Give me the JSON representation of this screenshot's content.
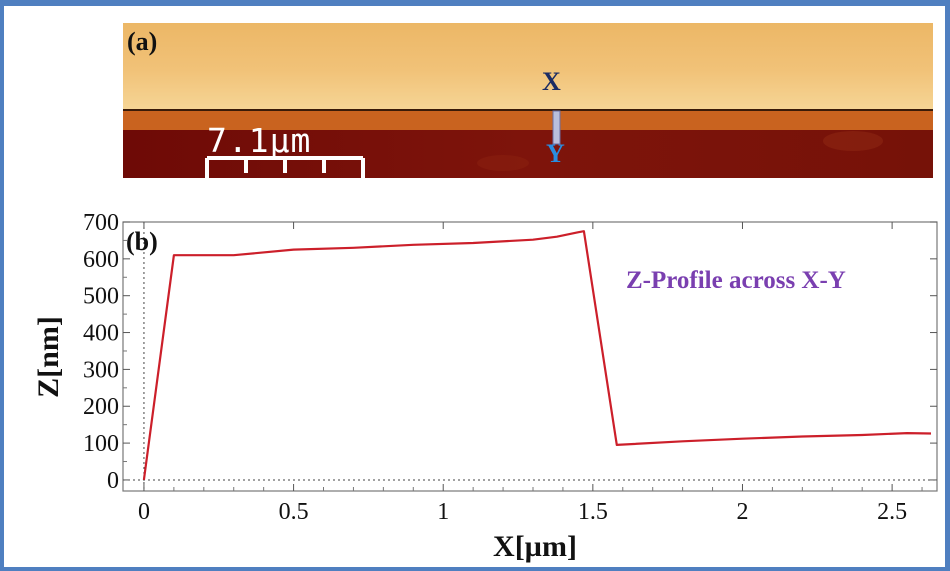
{
  "panel_a": {
    "label": "(a)",
    "scale_bar_text": "7.1µm",
    "marker_x": "X",
    "marker_y": "Y"
  },
  "colors": {
    "frame": "#4f7fc0",
    "line": "#cc1f2a",
    "annotation": "#7a3fb0",
    "marker_x": "#1c2c63",
    "marker_y": "#2a8de0"
  },
  "chart_data": {
    "type": "line",
    "panel_label": "(b)",
    "annotation": "Z-Profile across X-Y",
    "xlabel": "X[µm]",
    "ylabel": "Z[nm]",
    "xlim": [
      -0.07,
      2.65
    ],
    "ylim": [
      -30,
      700
    ],
    "xticks": [
      0,
      0.5,
      1,
      1.5,
      2,
      2.5
    ],
    "xtick_labels": [
      "0",
      "0.5",
      "1",
      "1.5",
      "2",
      "2.5"
    ],
    "yticks": [
      0,
      100,
      200,
      300,
      400,
      500,
      600,
      700
    ],
    "ytick_labels": [
      "0",
      "100",
      "200",
      "300",
      "400",
      "500",
      "600",
      "700"
    ],
    "zero_lines": true,
    "series": [
      {
        "x": [
          0,
          0.1,
          0.3,
          0.5,
          0.7,
          0.9,
          1.1,
          1.3,
          1.38,
          1.45,
          1.47,
          1.58,
          1.8,
          2.0,
          2.2,
          2.4,
          2.55,
          2.63
        ],
        "y": [
          0,
          610,
          610,
          625,
          630,
          638,
          643,
          652,
          660,
          672,
          675,
          95,
          105,
          112,
          118,
          122,
          127,
          126
        ]
      }
    ]
  }
}
